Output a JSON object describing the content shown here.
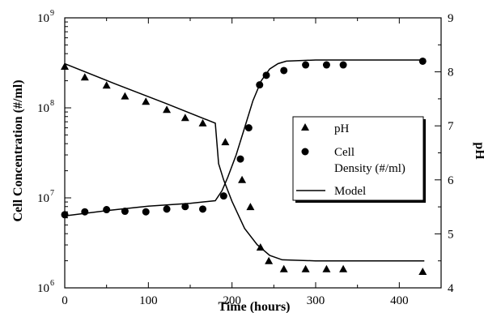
{
  "chart_data": {
    "type": "scatter",
    "title": "",
    "xlabel": "Time (hours)",
    "ylabel_left": "Cell Concentration (#/ml)",
    "ylabel_right": "pH",
    "x_ticks": [
      0,
      100,
      200,
      300,
      400
    ],
    "x_lim": [
      0,
      450
    ],
    "y_left_scale": "log",
    "y_left_lim": [
      1000000,
      1000000000
    ],
    "y_left_ticks": [
      {
        "value": 1000000,
        "base": "10",
        "exp": "6"
      },
      {
        "value": 10000000,
        "base": "10",
        "exp": "7"
      },
      {
        "value": 100000000,
        "base": "10",
        "exp": "8"
      },
      {
        "value": 1000000000,
        "base": "10",
        "exp": "9"
      }
    ],
    "y_right_lim": [
      4,
      9
    ],
    "y_right_ticks": [
      4,
      5,
      6,
      7,
      8,
      9
    ],
    "legend": {
      "position": "center-right",
      "entries": [
        {
          "marker": "triangle",
          "line1": "pH",
          "line2": ""
        },
        {
          "marker": "circle",
          "line1": "Cell",
          "line2": "Density (#/ml)"
        },
        {
          "marker": "line",
          "line1": "Model",
          "line2": ""
        }
      ]
    },
    "series": [
      {
        "name": "pH",
        "marker": "triangle",
        "axis": "right",
        "points": [
          [
            0,
            8.1
          ],
          [
            24,
            7.9
          ],
          [
            50,
            7.75
          ],
          [
            72,
            7.55
          ],
          [
            97,
            7.45
          ],
          [
            122,
            7.3
          ],
          [
            144,
            7.15
          ],
          [
            165,
            7.05
          ],
          [
            192,
            6.7
          ],
          [
            212,
            6.0
          ],
          [
            222,
            5.5
          ],
          [
            234,
            4.75
          ],
          [
            244,
            4.5
          ],
          [
            262,
            4.35
          ],
          [
            288,
            4.35
          ],
          [
            313,
            4.35
          ],
          [
            333,
            4.35
          ],
          [
            428,
            4.3
          ]
        ]
      },
      {
        "name": "Cell Density (#/ml)",
        "marker": "circle",
        "axis": "left",
        "points": [
          [
            0,
            6500000
          ],
          [
            24,
            7000000
          ],
          [
            50,
            7400000
          ],
          [
            72,
            7100000
          ],
          [
            97,
            7000000
          ],
          [
            122,
            7500000
          ],
          [
            144,
            8000000
          ],
          [
            165,
            7500000
          ],
          [
            190,
            10500000
          ],
          [
            210,
            27000000
          ],
          [
            220,
            60000000
          ],
          [
            233,
            180000000
          ],
          [
            241,
            230000000
          ],
          [
            262,
            260000000
          ],
          [
            288,
            300000000
          ],
          [
            313,
            300000000
          ],
          [
            333,
            300000000
          ],
          [
            428,
            330000000
          ]
        ]
      },
      {
        "name": "Model",
        "marker": "line",
        "curves": [
          {
            "axis": "right",
            "points": [
              [
                0,
                8.15
              ],
              [
                60,
                7.78
              ],
              [
                120,
                7.42
              ],
              [
                180,
                7.05
              ],
              [
                184,
                6.3
              ],
              [
                190,
                6.0
              ],
              [
                200,
                5.6
              ],
              [
                215,
                5.1
              ],
              [
                230,
                4.8
              ],
              [
                245,
                4.6
              ],
              [
                260,
                4.52
              ],
              [
                300,
                4.5
              ],
              [
                430,
                4.5
              ]
            ]
          },
          {
            "axis": "left",
            "points": [
              [
                0,
                6300000
              ],
              [
                50,
                7200000
              ],
              [
                100,
                8100000
              ],
              [
                150,
                8700000
              ],
              [
                180,
                9300000
              ],
              [
                188,
                12000000
              ],
              [
                195,
                17000000
              ],
              [
                205,
                30000000
              ],
              [
                215,
                60000000
              ],
              [
                225,
                120000000
              ],
              [
                235,
                200000000
              ],
              [
                245,
                270000000
              ],
              [
                255,
                310000000
              ],
              [
                265,
                330000000
              ],
              [
                300,
                340000000
              ],
              [
                430,
                340000000
              ]
            ]
          }
        ]
      }
    ]
  }
}
